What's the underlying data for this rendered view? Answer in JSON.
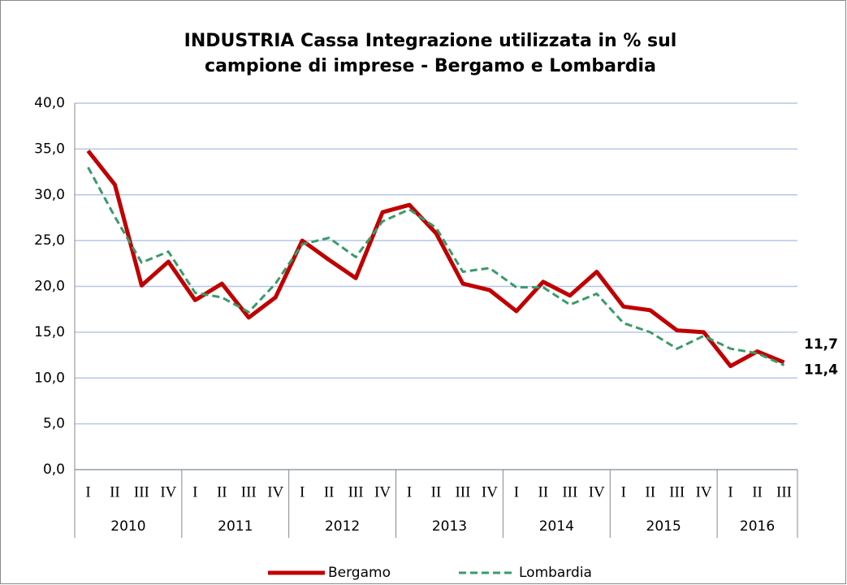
{
  "chart_data": {
    "type": "line",
    "title": [
      "INDUSTRIA  Cassa Integrazione utilizzata in % sul",
      "campione di imprese - Bergamo e Lombardia"
    ],
    "categories": [
      "I",
      "II",
      "III",
      "IV",
      "I",
      "II",
      "III",
      "IV",
      "I",
      "II",
      "III",
      "IV",
      "I",
      "II",
      "III",
      "IV",
      "I",
      "II",
      "III",
      "IV",
      "I",
      "II",
      "III",
      "IV",
      "I",
      "II",
      "III"
    ],
    "years": [
      "2010",
      "2011",
      "2012",
      "2013",
      "2014",
      "2015",
      "2016"
    ],
    "series": [
      {
        "name": "Bergamo",
        "color": "#c00000",
        "dash": false,
        "values": [
          34.8,
          31.1,
          20.1,
          22.7,
          18.5,
          20.3,
          16.6,
          18.8,
          25.0,
          22.9,
          20.9,
          28.1,
          28.9,
          25.8,
          20.3,
          19.6,
          17.3,
          20.5,
          19.0,
          21.6,
          17.8,
          17.4,
          15.2,
          15.0,
          11.3,
          12.9,
          11.7
        ],
        "value_labels": [
          null,
          null,
          null,
          null,
          null,
          null,
          null,
          null,
          null,
          null,
          null,
          null,
          null,
          null,
          null,
          null,
          null,
          null,
          null,
          null,
          null,
          null,
          null,
          null,
          null,
          null,
          "11,7"
        ]
      },
      {
        "name": "Lombardia",
        "color": "#3a9a6a",
        "dash": true,
        "values": [
          33.0,
          27.6,
          22.6,
          23.8,
          19.3,
          18.8,
          17.2,
          20.3,
          24.6,
          25.3,
          23.2,
          27.1,
          28.4,
          26.4,
          21.6,
          22.0,
          19.9,
          19.9,
          18.0,
          19.2,
          16.0,
          15.0,
          13.2,
          14.6,
          13.2,
          12.7,
          11.4
        ],
        "value_labels": [
          null,
          null,
          null,
          null,
          null,
          null,
          null,
          null,
          null,
          null,
          null,
          null,
          null,
          null,
          null,
          null,
          null,
          null,
          null,
          null,
          null,
          null,
          null,
          null,
          null,
          null,
          "11,4"
        ]
      }
    ],
    "ylim": [
      0,
      40
    ],
    "yticks": [
      {
        "value": 0,
        "label": "0,0"
      },
      {
        "value": 5,
        "label": "5,0"
      },
      {
        "value": 10,
        "label": "10,0"
      },
      {
        "value": 15,
        "label": "15,0"
      },
      {
        "value": 20,
        "label": "20,0"
      },
      {
        "value": 25,
        "label": "25,0"
      },
      {
        "value": 30,
        "label": "30,0"
      },
      {
        "value": 35,
        "label": "35,0"
      },
      {
        "value": 40,
        "label": "40,0"
      }
    ],
    "grid": true,
    "legend": "bottom"
  }
}
